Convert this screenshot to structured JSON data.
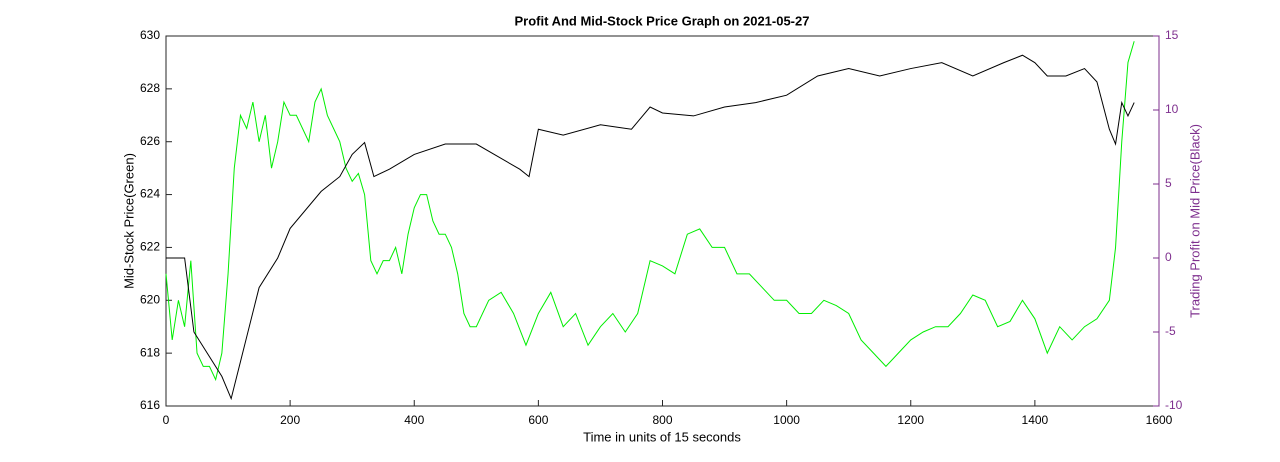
{
  "chart_data": {
    "type": "line",
    "title": "Profit And Mid-Stock Price Graph on 2021-05-27",
    "x_label": "Time in units of 15 seconds",
    "y_label": "Mid-Stock Price(Green)",
    "y2_label": "Trading Profit on Mid Price(Black)",
    "xlim": [
      0,
      1600
    ],
    "xticks": [
      0,
      200,
      400,
      600,
      800,
      1000,
      1200,
      1400,
      1600
    ],
    "ylim": [
      616,
      630
    ],
    "yticks": [
      616,
      618,
      620,
      622,
      624,
      626,
      628,
      630
    ],
    "y2lim": [
      -10,
      15
    ],
    "y2ticks": [
      -10,
      -5,
      0,
      5,
      10,
      15
    ],
    "y2_color": "#7e2f8e",
    "series": [
      {
        "color": "#00ee00",
        "x": [
          0,
          10,
          20,
          30,
          40,
          50,
          60,
          70,
          80,
          90,
          100,
          110,
          120,
          130,
          140,
          150,
          160,
          170,
          180,
          190,
          200,
          210,
          220,
          230,
          240,
          250,
          260,
          270,
          280,
          290,
          300,
          310,
          320,
          330,
          340,
          350,
          360,
          370,
          380,
          390,
          400,
          410,
          420,
          430,
          440,
          450,
          460,
          470,
          480,
          490,
          500,
          520,
          540,
          560,
          580,
          600,
          620,
          640,
          660,
          680,
          700,
          720,
          740,
          760,
          780,
          800,
          820,
          840,
          860,
          880,
          900,
          920,
          940,
          960,
          980,
          1000,
          1020,
          1040,
          1060,
          1080,
          1100,
          1120,
          1140,
          1160,
          1180,
          1200,
          1220,
          1240,
          1260,
          1280,
          1300,
          1320,
          1340,
          1360,
          1380,
          1400,
          1420,
          1440,
          1460,
          1480,
          1500,
          1520,
          1530,
          1540,
          1550,
          1560
        ],
        "values": [
          621,
          618.5,
          620,
          619,
          621.5,
          618,
          617.5,
          617.5,
          617,
          618,
          621,
          625,
          627,
          626.5,
          627.5,
          626,
          627,
          625,
          626,
          627.5,
          627,
          627,
          626.5,
          626,
          627.5,
          628,
          627,
          626.5,
          626,
          625,
          624.5,
          624.8,
          624,
          621.5,
          621,
          621.5,
          621.5,
          622,
          621,
          622.5,
          623.5,
          624,
          624,
          623,
          622.5,
          622.5,
          622,
          621,
          619.5,
          619,
          619,
          620,
          620.3,
          619.5,
          618.3,
          619.5,
          620.3,
          619,
          619.5,
          618.3,
          619,
          619.5,
          618.8,
          619.5,
          621.5,
          621.3,
          621,
          622.5,
          622.7,
          622,
          622,
          621,
          621,
          620.5,
          620,
          620,
          619.5,
          619.5,
          620,
          619.8,
          619.5,
          618.5,
          618,
          617.5,
          618,
          618.5,
          618.8,
          619,
          619,
          619.5,
          620.2,
          620,
          619,
          619.2,
          620,
          619.3,
          618,
          619,
          618.5,
          619,
          619.3,
          620,
          622,
          626,
          629,
          629.8
        ]
      },
      {
        "color": "#000000",
        "axis": "y2",
        "x": [
          0,
          30,
          45,
          90,
          105,
          120,
          150,
          180,
          200,
          250,
          280,
          300,
          320,
          335,
          360,
          400,
          450,
          500,
          570,
          585,
          600,
          640,
          700,
          750,
          780,
          800,
          850,
          900,
          950,
          1000,
          1050,
          1100,
          1150,
          1200,
          1250,
          1300,
          1350,
          1380,
          1400,
          1420,
          1450,
          1480,
          1500,
          1520,
          1530,
          1540,
          1550,
          1560
        ],
        "values": [
          0,
          0,
          -5,
          -8,
          -9.5,
          -7,
          -2,
          0,
          2,
          4.5,
          5.5,
          7,
          7.8,
          5.5,
          6,
          7,
          7.7,
          7.7,
          6,
          5.5,
          8.7,
          8.3,
          9,
          8.7,
          10.2,
          9.8,
          9.6,
          10.2,
          10.5,
          11,
          12.3,
          12.8,
          12.3,
          12.8,
          13.2,
          12.3,
          13.2,
          13.7,
          13.2,
          12.3,
          12.3,
          12.8,
          11.9,
          8.7,
          7.7,
          10.5,
          9.6,
          10.5
        ]
      }
    ]
  }
}
